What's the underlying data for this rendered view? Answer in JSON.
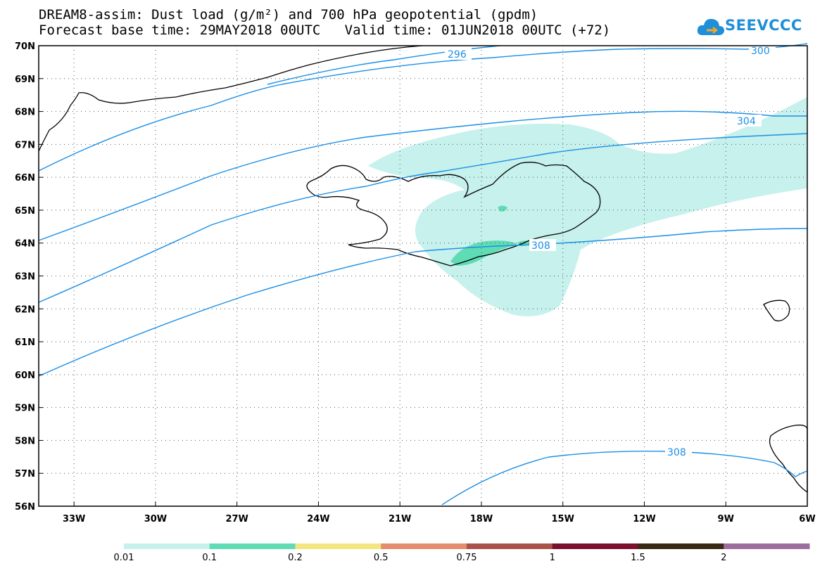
{
  "title": {
    "line1": "DREAM8-assim: Dust load (g/m²) and 700 hPa geopotential (gpdm)",
    "line2": "Forecast base time: 29MAY2018 00UTC   Valid time: 01JUN2018 00UTC (+72)"
  },
  "logo": {
    "text": "SEEVCCC",
    "icon": "cloud-icon",
    "color": "#1e8fd8"
  },
  "map": {
    "region": "North Atlantic / Iceland",
    "lat_labels": [
      "70N",
      "69N",
      "68N",
      "67N",
      "66N",
      "65N",
      "64N",
      "63N",
      "62N",
      "61N",
      "60N",
      "59N",
      "58N",
      "57N",
      "56N"
    ],
    "lon_labels": [
      "33W",
      "30W",
      "27W",
      "24W",
      "21W",
      "18W",
      "15W",
      "12W",
      "9W",
      "6W"
    ],
    "lon_range": [
      -34.3,
      -6
    ],
    "lat_range": [
      56,
      70
    ],
    "contour_color": "#1a8fe6",
    "contour_labels": [
      "296",
      "300",
      "304",
      "308",
      "308"
    ]
  },
  "colorbar": {
    "labels": [
      "0.01",
      "0.1",
      "0.2",
      "0.5",
      "0.75",
      "1",
      "1.5",
      "2"
    ],
    "colors": [
      "#c6f1ec",
      "#5fdcb4",
      "#f3e681",
      "#e38c6e",
      "#a8524a",
      "#7a0f2e",
      "#3a2a14",
      "#9c6d9e"
    ]
  }
}
